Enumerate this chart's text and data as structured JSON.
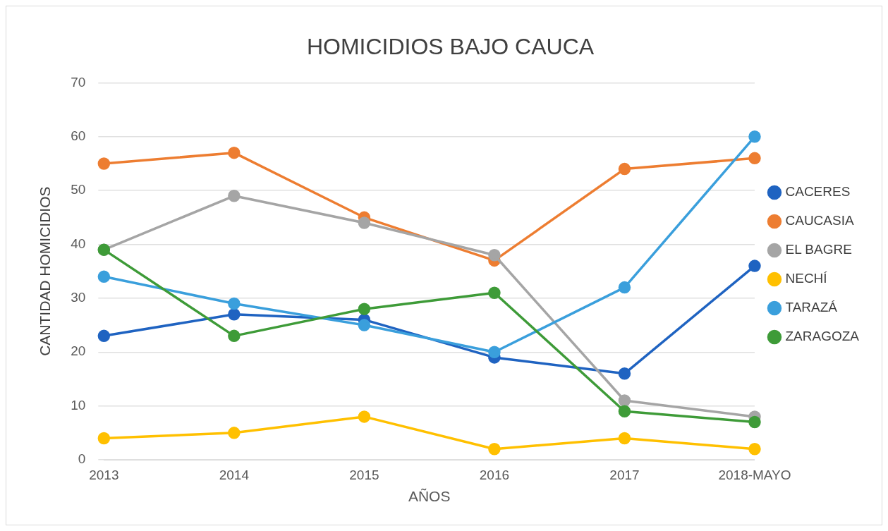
{
  "chart_data": {
    "type": "line",
    "title": "HOMICIDIOS BAJO CAUCA",
    "xlabel": "AÑOS",
    "ylabel": "CANTIDAD HOMICIDIOS",
    "categories": [
      "2013",
      "2014",
      "2015",
      "2016",
      "2017",
      "2018-MAYO"
    ],
    "series": [
      {
        "name": "CACERES",
        "color": "#1f63c1",
        "values": [
          23,
          27,
          26,
          19,
          16,
          36
        ]
      },
      {
        "name": "CAUCASIA",
        "color": "#ed7d31",
        "values": [
          55,
          57,
          45,
          37,
          54,
          56
        ]
      },
      {
        "name": "EL BAGRE",
        "color": "#a5a5a5",
        "values": [
          39,
          49,
          44,
          38,
          11,
          8
        ]
      },
      {
        "name": "NECHÍ",
        "color": "#ffc000",
        "values": [
          4,
          5,
          8,
          2,
          4,
          2
        ]
      },
      {
        "name": "TARAZÁ",
        "color": "#3a9fdc",
        "values": [
          34,
          29,
          25,
          20,
          32,
          60
        ]
      },
      {
        "name": "ZARAGOZA",
        "color": "#3e9b38",
        "values": [
          39,
          23,
          28,
          31,
          9,
          7
        ]
      }
    ],
    "ylim": [
      0,
      70
    ],
    "yticks": [
      0,
      10,
      20,
      30,
      40,
      50,
      60,
      70
    ],
    "grid": "y",
    "legend": "right",
    "marker": "circle",
    "line_style": "solid"
  }
}
